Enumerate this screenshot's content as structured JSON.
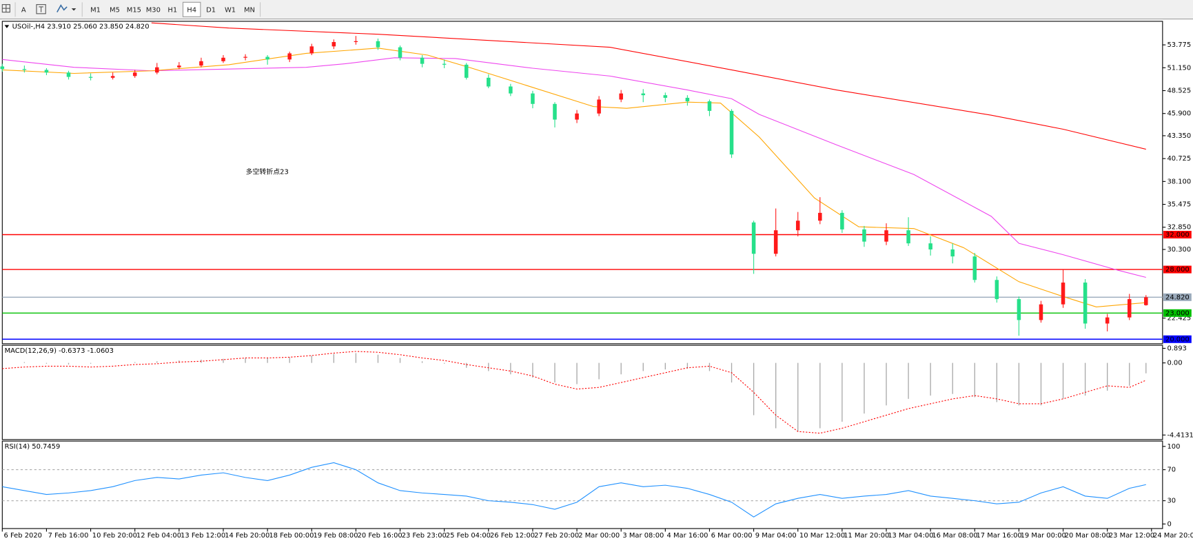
{
  "toolbar": {
    "text_tool": "A",
    "timeframes": [
      "M1",
      "M5",
      "M15",
      "M30",
      "H1",
      "H4",
      "D1",
      "W1",
      "MN"
    ],
    "active": "H4"
  },
  "chart_data": [
    {
      "type": "candlestick",
      "title": "USOil-,H4  23.910 25.060 23.850 24.820",
      "annotation": "多空转折点23",
      "up_color": "#ff1a1a",
      "down_color": "#26e08a",
      "xlim": [
        0,
        210
      ],
      "ylim": [
        19.48,
        56.48
      ],
      "yticks": [
        53.775,
        {
          "value": 51.15,
          "label": "51.150"
        },
        48.525,
        {
          "value": 45.9,
          "label": "45.900"
        },
        {
          "value": 43.35,
          "label": "43.350"
        },
        40.725,
        {
          "value": 38.1,
          "label": "38.100"
        },
        35.475,
        {
          "value": 32.85,
          "label": "32.850"
        },
        {
          "value": 30.3,
          "label": "30.300"
        },
        22.425
      ],
      "hlines": [
        {
          "value": 32,
          "label": "32.000",
          "color": "#ff0000"
        },
        {
          "value": 28,
          "label": "28.000",
          "color": "#ff0000"
        },
        {
          "value": 24.82,
          "label": "24.820",
          "color": "#9aaabb"
        },
        {
          "value": 23,
          "label": "23.000",
          "color": "#00c000"
        },
        {
          "value": 20,
          "label": "20.000",
          "color": "#0000ff"
        }
      ],
      "x": [
        0,
        4,
        8,
        12,
        16,
        20,
        24,
        28,
        32,
        36,
        40,
        44,
        48,
        52,
        56,
        60,
        64,
        68,
        72,
        76,
        80,
        84,
        88,
        92,
        96,
        100,
        104,
        108,
        112,
        116,
        120,
        124,
        128,
        132,
        136,
        140,
        144,
        148,
        152,
        156,
        160,
        164,
        168,
        172,
        176,
        180,
        184,
        188,
        192,
        196,
        200,
        204,
        207
      ],
      "open": [
        51.3,
        51.0,
        50.9,
        50.6,
        50.1,
        50.0,
        50.2,
        50.6,
        51.2,
        51.4,
        51.9,
        52.3,
        52.4,
        52.1,
        52.8,
        53.6,
        54.1,
        54.2,
        53.5,
        52.3,
        51.6,
        51.5,
        50.0,
        49.0,
        48.2,
        47.0,
        45.2,
        45.9,
        47.5,
        48.2,
        48.0,
        47.7,
        47.3,
        46.2,
        33.4,
        29.8,
        32.5,
        33.6,
        34.5,
        32.6,
        31.2,
        32.5,
        31.0,
        30.3,
        29.5,
        26.8,
        24.6,
        22.2,
        24.0,
        26.5,
        21.8,
        22.5,
        23.91
      ],
      "high": [
        51.6,
        51.4,
        51.1,
        50.8,
        50.5,
        50.6,
        50.9,
        51.7,
        51.8,
        52.3,
        52.6,
        52.7,
        52.6,
        53.0,
        53.9,
        54.4,
        54.8,
        54.5,
        53.7,
        52.6,
        52.1,
        51.7,
        50.4,
        49.3,
        48.5,
        47.2,
        46.3,
        47.9,
        48.6,
        48.7,
        48.3,
        48.0,
        47.5,
        46.4,
        33.6,
        35.0,
        34.6,
        36.3,
        34.8,
        33.0,
        33.3,
        34.0,
        31.8,
        31.0,
        29.9,
        27.2,
        24.9,
        24.4,
        28.0,
        26.9,
        22.9,
        25.2,
        25.06
      ],
      "low": [
        50.7,
        50.6,
        50.3,
        49.8,
        49.7,
        49.8,
        50.0,
        50.4,
        51.0,
        51.2,
        51.7,
        52.0,
        51.5,
        51.8,
        52.6,
        53.3,
        53.8,
        53.2,
        52.0,
        51.2,
        51.1,
        49.8,
        48.8,
        47.9,
        46.5,
        44.3,
        44.8,
        45.6,
        47.2,
        47.2,
        47.2,
        46.8,
        45.6,
        40.8,
        27.5,
        29.5,
        31.8,
        33.2,
        32.2,
        30.6,
        30.8,
        30.7,
        29.6,
        28.7,
        26.5,
        24.2,
        20.4,
        21.9,
        23.6,
        21.2,
        20.9,
        22.2,
        23.85
      ],
      "close": [
        51.0,
        50.9,
        50.6,
        50.1,
        50.0,
        50.2,
        50.6,
        51.2,
        51.4,
        51.9,
        52.3,
        52.4,
        52.1,
        52.8,
        53.6,
        54.1,
        54.2,
        53.5,
        52.3,
        51.6,
        51.5,
        50.0,
        49.0,
        48.2,
        47.0,
        45.2,
        45.9,
        47.5,
        48.2,
        48.0,
        47.7,
        47.3,
        46.2,
        41.2,
        29.8,
        32.5,
        33.6,
        34.5,
        32.6,
        31.2,
        32.5,
        31.0,
        30.3,
        29.5,
        26.8,
        24.6,
        22.2,
        24.0,
        26.5,
        21.8,
        22.5,
        24.6,
        24.82
      ],
      "series": [
        {
          "color": "#ff0000",
          "x": [
            27,
            41,
            68,
            110,
            132,
            151,
            179,
            192,
            207
          ],
          "values": [
            56.3,
            55.7,
            55.0,
            53.5,
            50.9,
            48.6,
            45.7,
            44.1,
            41.8
          ]
        },
        {
          "color": "#ee44ee",
          "x": [
            0,
            13,
            27,
            41,
            55,
            62,
            71,
            82,
            96,
            110,
            124,
            132,
            137,
            151,
            165,
            179,
            184,
            192,
            202,
            207
          ],
          "values": [
            52.1,
            51.2,
            50.8,
            51.0,
            51.2,
            51.6,
            52.3,
            52.2,
            51.1,
            50.2,
            48.6,
            47.6,
            45.8,
            42.3,
            38.9,
            34.1,
            31.0,
            29.7,
            27.9,
            27.1
          ]
        },
        {
          "color": "#ffa500",
          "x": [
            0,
            13,
            27,
            41,
            55,
            68,
            77,
            85,
            96,
            107,
            113,
            124,
            130,
            137,
            147,
            155,
            165,
            174,
            184,
            192,
            198,
            207
          ],
          "values": [
            50.9,
            50.5,
            50.8,
            51.5,
            52.8,
            53.4,
            52.6,
            51.1,
            48.9,
            46.7,
            46.5,
            47.2,
            47.1,
            43.2,
            36.2,
            32.9,
            32.7,
            30.5,
            26.6,
            24.9,
            23.7,
            24.2
          ]
        }
      ]
    },
    {
      "type": "macd",
      "title": "MACD(12,26,9) -0.6373 -1.0603",
      "color": "#a8a8a8",
      "xlim": [
        0,
        210
      ],
      "ylim": [
        -4.4131,
        0.893
      ],
      "yticks": [
        0.893,
        {
          "value": 0,
          "label": "0.00"
        },
        -4.4131
      ],
      "x": [
        0,
        4,
        8,
        12,
        16,
        20,
        24,
        28,
        32,
        36,
        40,
        44,
        48,
        52,
        56,
        60,
        64,
        68,
        72,
        76,
        80,
        84,
        88,
        92,
        96,
        100,
        104,
        108,
        112,
        116,
        120,
        124,
        128,
        132,
        136,
        140,
        144,
        148,
        152,
        156,
        160,
        164,
        168,
        172,
        176,
        180,
        184,
        188,
        192,
        196,
        200,
        204,
        207
      ],
      "values": [
        0.0,
        0.05,
        -0.05,
        -0.1,
        -0.05,
        0.0,
        0.05,
        0.1,
        0.15,
        0.2,
        0.25,
        0.3,
        0.3,
        0.35,
        0.45,
        0.55,
        0.6,
        0.5,
        0.3,
        0.1,
        -0.05,
        -0.3,
        -0.5,
        -0.7,
        -0.9,
        -1.2,
        -1.3,
        -1.0,
        -0.7,
        -0.5,
        -0.4,
        -0.35,
        -0.5,
        -1.2,
        -3.2,
        -4.0,
        -4.2,
        -4.0,
        -3.6,
        -3.1,
        -2.6,
        -2.2,
        -2.0,
        -1.9,
        -2.1,
        -2.4,
        -2.6,
        -2.6,
        -2.2,
        -2.0,
        -1.7,
        -1.4,
        -0.6373
      ],
      "signal": {
        "color": "#ff0000",
        "values": [
          -0.35,
          -0.25,
          -0.2,
          -0.2,
          -0.25,
          -0.2,
          -0.1,
          -0.05,
          0.05,
          0.1,
          0.2,
          0.3,
          0.3,
          0.35,
          0.45,
          0.6,
          0.7,
          0.65,
          0.5,
          0.3,
          0.15,
          -0.1,
          -0.3,
          -0.5,
          -0.8,
          -1.3,
          -1.6,
          -1.5,
          -1.2,
          -0.9,
          -0.6,
          -0.3,
          -0.2,
          -0.6,
          -1.8,
          -3.2,
          -4.2,
          -4.3,
          -4.0,
          -3.6,
          -3.2,
          -2.8,
          -2.5,
          -2.2,
          -2.0,
          -2.2,
          -2.5,
          -2.5,
          -2.2,
          -1.8,
          -1.4,
          -1.5,
          -1.0603
        ]
      }
    },
    {
      "type": "line",
      "title": "RSI(14) 50.7459",
      "color": "#1e90ff",
      "level_lines": true,
      "xlim": [
        0,
        210
      ],
      "ylim": [
        0,
        100
      ],
      "yticks": [
        0,
        30,
        70,
        100
      ],
      "x": [
        0,
        4,
        8,
        12,
        16,
        20,
        24,
        28,
        32,
        36,
        40,
        44,
        48,
        52,
        56,
        60,
        64,
        68,
        72,
        76,
        80,
        84,
        88,
        92,
        96,
        100,
        104,
        108,
        112,
        116,
        120,
        124,
        128,
        132,
        136,
        140,
        144,
        148,
        152,
        156,
        160,
        164,
        168,
        172,
        176,
        180,
        184,
        188,
        192,
        196,
        200,
        204,
        207
      ],
      "values": [
        48,
        43,
        38,
        40,
        43,
        48,
        56,
        60,
        58,
        63,
        66,
        60,
        56,
        63,
        73,
        79,
        70,
        53,
        43,
        40,
        38,
        36,
        30,
        28,
        25,
        19,
        28,
        48,
        53,
        48,
        50,
        46,
        38,
        28,
        9,
        26,
        33,
        38,
        33,
        36,
        38,
        43,
        36,
        33,
        30,
        26,
        28,
        40,
        48,
        36,
        33,
        46,
        50.7459
      ],
      "xticks": [
        {
          "value": 0,
          "label": "6 Feb 2020"
        },
        {
          "value": 8,
          "label": "7 Feb 16:00"
        },
        {
          "value": 16,
          "label": "10 Feb 20:00"
        },
        {
          "value": 24,
          "label": "12 Feb 04:00"
        },
        {
          "value": 32,
          "label": "13 Feb 12:00"
        },
        {
          "value": 40,
          "label": "14 Feb 20:00"
        },
        {
          "value": 48,
          "label": "18 Feb 00:00"
        },
        {
          "value": 56,
          "label": "19 Feb 08:00"
        },
        {
          "value": 64,
          "label": "20 Feb 16:00"
        },
        {
          "value": 72,
          "label": "23 Feb 23:00"
        },
        {
          "value": 80,
          "label": "25 Feb 04:00"
        },
        {
          "value": 88,
          "label": "26 Feb 12:00"
        },
        {
          "value": 96,
          "label": "27 Feb 20:00"
        },
        {
          "value": 104,
          "label": "2 Mar 00:00"
        },
        {
          "value": 112,
          "label": "3 Mar 08:00"
        },
        {
          "value": 120,
          "label": "4 Mar 16:00"
        },
        {
          "value": 128,
          "label": "6 Mar 00:00"
        },
        {
          "value": 136,
          "label": "9 Mar 04:00"
        },
        {
          "value": 144,
          "label": "10 Mar 12:00"
        },
        {
          "value": 152,
          "label": "11 Mar 20:00"
        },
        {
          "value": 160,
          "label": "13 Mar 04:00"
        },
        {
          "value": 168,
          "label": "16 Mar 08:00"
        },
        {
          "value": 176,
          "label": "17 Mar 16:00"
        },
        {
          "value": 184,
          "label": "19 Mar 00:00"
        },
        {
          "value": 192,
          "label": "20 Mar 08:00"
        },
        {
          "value": 200,
          "label": "23 Mar 12:00"
        },
        {
          "value": 208,
          "label": "24 Mar 20:00"
        }
      ]
    }
  ]
}
